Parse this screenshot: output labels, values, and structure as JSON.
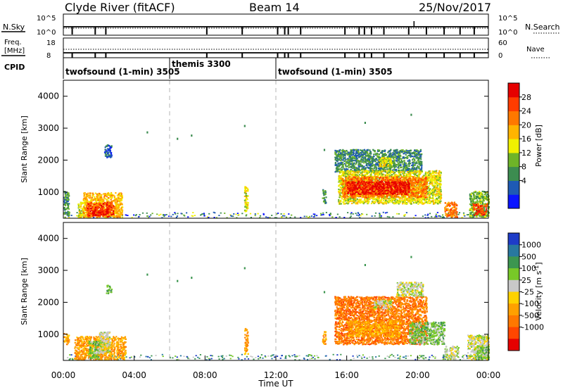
{
  "header": {
    "title": "Clyde River (fitACF)",
    "beam": "Beam 14",
    "date": "25/Nov/2017"
  },
  "status_panel": {
    "nsky_label": "N.Sky",
    "nsky_ticks": [
      "10^5",
      "10^0"
    ],
    "nsearch_label": "N.Search",
    "nsearch_ticks": [
      "10^5",
      "10^0"
    ],
    "freq_label": "Freq.",
    "freq_unit": "[MHz]",
    "freq_ticks": [
      "18",
      "8"
    ],
    "nave_label": "Nave",
    "nave_ticks": [
      "60",
      "0"
    ],
    "cpid_label": "CPID",
    "cpid_segments": [
      {
        "name": "twofsound (1-min) 3505",
        "start": 0,
        "end": 6
      },
      {
        "name": "themis 3300",
        "start": 6,
        "end": 12
      },
      {
        "name": "twofsound (1-min) 3505",
        "start": 12,
        "end": 24
      }
    ]
  },
  "colorbars": {
    "power": {
      "label": "Power [dB]",
      "ticks": [
        "28",
        "24",
        "20",
        "16",
        "12",
        "8",
        "4"
      ],
      "colors": [
        "#0a14ff",
        "#1e5ab4",
        "#3c8c50",
        "#6eb428",
        "#f0f000",
        "#ffb400",
        "#ff7800",
        "#ff3c00",
        "#e60000"
      ]
    },
    "velocity": {
      "label": "Velocity [m s",
      "label_exp": "-1",
      "ticks": [
        "1000",
        "500",
        "100",
        "25",
        "-25",
        "-100",
        "-500",
        "-1000"
      ],
      "colors": [
        "#1e3cc8",
        "#2878a0",
        "#3c9650",
        "#78c828",
        "#c8c8c8",
        "#ffd200",
        "#ffa000",
        "#ff7800",
        "#ff4600",
        "#e60000"
      ]
    }
  },
  "chart_data": [
    {
      "type": "heatmap",
      "name": "power",
      "ylabel": "Slant Range [km]",
      "yticks": [
        "4000",
        "3000",
        "2000",
        "1000"
      ],
      "ylim": [
        180,
        4500
      ],
      "xlim": [
        0,
        24
      ],
      "grid": "dashed vertical lines at 06:00 and 12:00",
      "regions": [
        {
          "t0": 0.0,
          "t1": 0.3,
          "r0": 250,
          "r1": 1050,
          "level": 2
        },
        {
          "t0": 0.8,
          "t1": 1.2,
          "r0": 220,
          "r1": 700,
          "level": 4
        },
        {
          "t0": 1.1,
          "t1": 3.3,
          "r0": 220,
          "r1": 1000,
          "level": 5
        },
        {
          "t0": 1.3,
          "t1": 2.8,
          "r0": 250,
          "r1": 700,
          "level": 7
        },
        {
          "t0": 1.6,
          "t1": 2.5,
          "r0": 280,
          "r1": 500,
          "level": 8
        },
        {
          "t0": 2.3,
          "t1": 2.7,
          "r0": 2100,
          "r1": 2500,
          "level": 1
        },
        {
          "t0": 10.2,
          "t1": 10.4,
          "r0": 400,
          "r1": 1200,
          "level": 4
        },
        {
          "t0": 14.6,
          "t1": 14.8,
          "r0": 650,
          "r1": 1100,
          "level": 2
        },
        {
          "t0": 15.3,
          "t1": 20.2,
          "r0": 1650,
          "r1": 2350,
          "level": 2
        },
        {
          "t0": 15.5,
          "t1": 21.3,
          "r0": 650,
          "r1": 1700,
          "level": 4
        },
        {
          "t0": 15.7,
          "t1": 20.5,
          "r0": 850,
          "r1": 1500,
          "level": 6
        },
        {
          "t0": 16.0,
          "t1": 19.5,
          "r0": 950,
          "r1": 1350,
          "level": 8
        },
        {
          "t0": 17.8,
          "t1": 18.5,
          "r0": 1800,
          "r1": 2100,
          "level": 4
        },
        {
          "t0": 21.5,
          "t1": 22.2,
          "r0": 230,
          "r1": 700,
          "level": 6
        },
        {
          "t0": 22.9,
          "t1": 24.0,
          "r0": 230,
          "r1": 1050,
          "level": 3
        },
        {
          "t0": 23.1,
          "t1": 23.9,
          "r0": 300,
          "r1": 650,
          "level": 7
        }
      ]
    },
    {
      "type": "heatmap",
      "name": "velocity",
      "ylabel": "Slant Range [km]",
      "yticks": [
        "4000",
        "3000",
        "2000",
        "1000"
      ],
      "ylim": [
        180,
        4500
      ],
      "xlim": [
        0,
        24
      ],
      "xticks": [
        "00:00",
        "04:00",
        "08:00",
        "12:00",
        "16:00",
        "20:00",
        "00:00"
      ],
      "xlabel": "Time UT",
      "grid": "dashed vertical lines at 06:00 and 12:00",
      "regions": [
        {
          "t0": 0.0,
          "t1": 0.3,
          "r0": 700,
          "r1": 1050,
          "level": 6
        },
        {
          "t0": 0.6,
          "t1": 3.5,
          "r0": 220,
          "r1": 950,
          "level": 6
        },
        {
          "t0": 1.4,
          "t1": 2.0,
          "r0": 250,
          "r1": 800,
          "level": 3
        },
        {
          "t0": 2.0,
          "t1": 2.6,
          "r0": 400,
          "r1": 1100,
          "level": 4
        },
        {
          "t0": 2.4,
          "t1": 2.7,
          "r0": 2300,
          "r1": 2550,
          "level": 3
        },
        {
          "t0": 10.2,
          "t1": 10.4,
          "r0": 400,
          "r1": 1200,
          "level": 6
        },
        {
          "t0": 14.6,
          "t1": 14.8,
          "r0": 650,
          "r1": 1100,
          "level": 6
        },
        {
          "t0": 15.3,
          "t1": 20.5,
          "r0": 700,
          "r1": 2200,
          "level": 7
        },
        {
          "t0": 16.0,
          "t1": 19.0,
          "r0": 950,
          "r1": 1450,
          "level": 6
        },
        {
          "t0": 17.5,
          "t1": 18.5,
          "r0": 1800,
          "r1": 2100,
          "level": 4
        },
        {
          "t0": 19.5,
          "t1": 21.5,
          "r0": 700,
          "r1": 1400,
          "level": 3
        },
        {
          "t0": 18.8,
          "t1": 20.3,
          "r0": 2200,
          "r1": 2650,
          "level": 4
        },
        {
          "t0": 21.5,
          "t1": 22.3,
          "r0": 230,
          "r1": 650,
          "level": 4
        },
        {
          "t0": 22.8,
          "t1": 24.0,
          "r0": 230,
          "r1": 1000,
          "level": 4
        },
        {
          "t0": 23.3,
          "t1": 24.0,
          "r0": 230,
          "r1": 650,
          "level": 3
        }
      ]
    }
  ]
}
